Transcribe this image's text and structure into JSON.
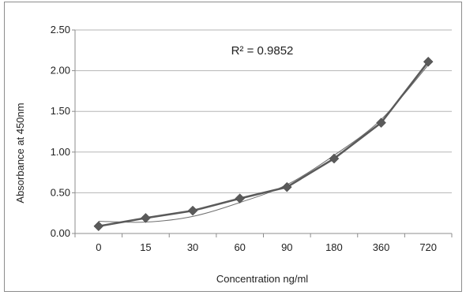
{
  "chart_data": {
    "type": "line",
    "categories": [
      "0",
      "15",
      "30",
      "60",
      "90",
      "180",
      "360",
      "720"
    ],
    "series": [
      {
        "values": [
          0.09,
          0.19,
          0.28,
          0.43,
          0.57,
          0.92,
          1.36,
          2.11
        ],
        "marker": "diamond",
        "color": "#5a5a5a"
      }
    ],
    "trendline": {
      "values": [
        0.15,
        0.14,
        0.21,
        0.38,
        0.6,
        0.96,
        1.4,
        2.07
      ],
      "color": "#6e6e6e"
    },
    "annotation": "R² = 0.9852",
    "xlabel": "Concentration ng/ml",
    "ylabel": "Absorbance at 450nm",
    "ylim": [
      0,
      2.5
    ],
    "yticks": [
      "0.00",
      "0.50",
      "1.00",
      "1.50",
      "2.00",
      "2.50"
    ],
    "grid": true,
    "legend": "none"
  }
}
